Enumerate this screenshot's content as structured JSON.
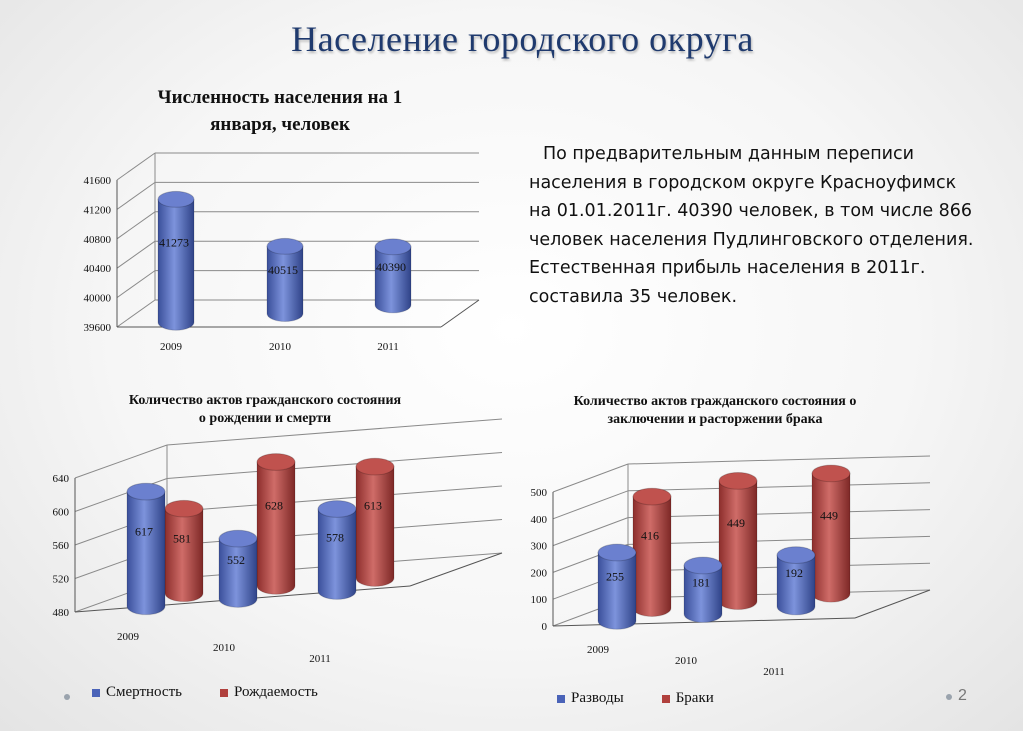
{
  "slide": {
    "title": "Население городского округа",
    "page_number": "2"
  },
  "text_block": {
    "line1": "По предварительным данным переписи",
    "line2": "населения в городском округе Красноуфимск",
    "line3": "на 01.01.2011г. 40390 человек, в том числе 866",
    "line4": "человек населения Пудлинговского отделения.",
    "line5": "Естественная прибыль населения в 2011г.",
    "line6": "составила 35 человек."
  },
  "colors": {
    "blue": "#4a63b8",
    "red": "#b0403d",
    "title": "#1f3a6e"
  },
  "chart_data": [
    {
      "type": "bar",
      "title": "Численность населения на 1 января, человек",
      "title_line1": "Численность населения на 1",
      "title_line2": "января, человек",
      "categories": [
        "2009",
        "2010",
        "2011"
      ],
      "series": [
        {
          "values": [
            41273,
            40515,
            40390
          ]
        }
      ],
      "ylim": [
        39600,
        41600
      ],
      "yticks": [
        "39600",
        "40000",
        "40400",
        "40800",
        "41200",
        "41600"
      ],
      "grid": true,
      "style": "3d-cylinder"
    },
    {
      "type": "bar",
      "title": "Количество актов гражданского состояния о рождении и смерти",
      "title_line1": "Количество актов гражданского состояния",
      "title_line2": "о рождении и смерти",
      "categories": [
        "2009",
        "2010",
        "2011"
      ],
      "series": [
        {
          "name": "Смертность",
          "values": [
            617,
            552,
            578
          ]
        },
        {
          "name": "Рождаемость",
          "values": [
            581,
            628,
            613
          ]
        }
      ],
      "ylim": [
        480,
        640
      ],
      "yticks": [
        "480",
        "520",
        "560",
        "600",
        "640"
      ],
      "grid": true,
      "legend": "bottom",
      "style": "3d-cylinder"
    },
    {
      "type": "bar",
      "title": "Количество актов гражданского состояния о заключении и расторжении брака",
      "title_line1": "Количество актов гражданского состояния о",
      "title_line2": "заключении и расторжении брака",
      "categories": [
        "2009",
        "2010",
        "2011"
      ],
      "series": [
        {
          "name": "Разводы",
          "values": [
            255,
            181,
            192
          ]
        },
        {
          "name": "Браки",
          "values": [
            416,
            449,
            449
          ]
        }
      ],
      "ylim": [
        0,
        500
      ],
      "yticks": [
        "0",
        "100",
        "200",
        "300",
        "400",
        "500"
      ],
      "grid": true,
      "legend": "bottom",
      "style": "3d-cylinder"
    }
  ]
}
